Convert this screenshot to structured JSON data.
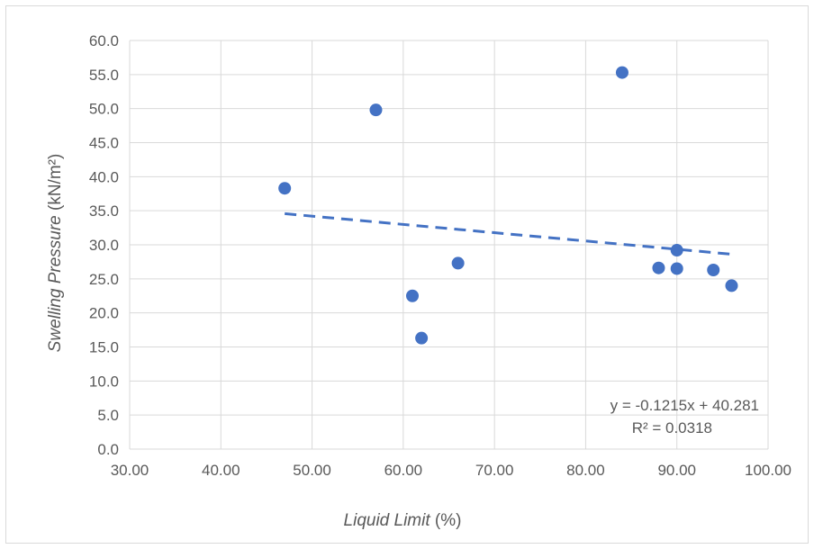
{
  "chart_data": {
    "type": "scatter",
    "title": "",
    "xlabel": {
      "italic": "Liquid Limit",
      "plain": " (%)"
    },
    "ylabel": {
      "italic": "Swelling Pressure",
      "plain": " (kN/m²)"
    },
    "xlim": [
      30,
      100
    ],
    "ylim": [
      0,
      60
    ],
    "x_ticks": [
      "30.00",
      "40.00",
      "50.00",
      "60.00",
      "70.00",
      "80.00",
      "90.00",
      "100.00"
    ],
    "y_ticks": [
      "0.0",
      "5.0",
      "10.0",
      "15.0",
      "20.0",
      "25.0",
      "30.0",
      "35.0",
      "40.0",
      "45.0",
      "50.0",
      "55.0",
      "60.0"
    ],
    "grid": true,
    "series": [
      {
        "color": "#4472c4",
        "points": [
          {
            "x": 47,
            "y": 38.3
          },
          {
            "x": 57,
            "y": 49.8
          },
          {
            "x": 61,
            "y": 22.5
          },
          {
            "x": 62,
            "y": 16.3
          },
          {
            "x": 66,
            "y": 27.3
          },
          {
            "x": 84,
            "y": 55.3
          },
          {
            "x": 88,
            "y": 26.6
          },
          {
            "x": 90,
            "y": 29.2
          },
          {
            "x": 90,
            "y": 26.5
          },
          {
            "x": 94,
            "y": 26.3
          },
          {
            "x": 96,
            "y": 24.0
          }
        ]
      }
    ],
    "trendline": {
      "type": "linear",
      "slope": -0.1215,
      "intercept": 40.281,
      "x_range": [
        47,
        96
      ],
      "color": "#4472c4",
      "style": "dashed",
      "equation_label": "y = -0.1215x + 40.281",
      "r2_label": "R² = 0.0318"
    }
  }
}
